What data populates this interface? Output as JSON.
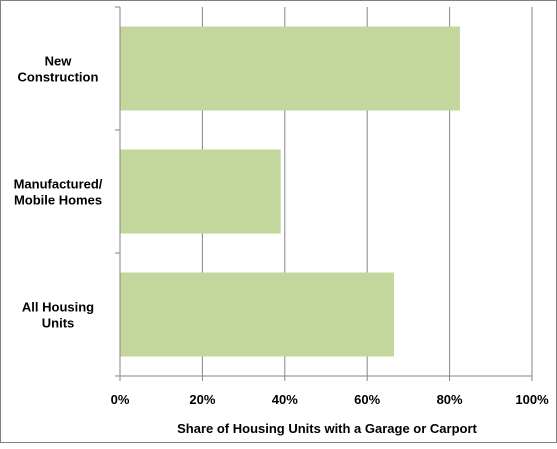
{
  "chart_data": {
    "type": "bar",
    "orientation": "horizontal",
    "categories": [
      [
        "New",
        "Construction"
      ],
      [
        "Manufactured/",
        "Mobile Homes"
      ],
      [
        "All Housing",
        "Units"
      ]
    ],
    "values": [
      82.5,
      39,
      66.5
    ],
    "value_unit": "percent",
    "xlabel": "Share of Housing Units with a Garage or Carport",
    "ylabel": "",
    "title": "",
    "xlim": [
      0,
      100
    ],
    "xticks": [
      0,
      20,
      40,
      60,
      80,
      100
    ],
    "xtick_labels": [
      "0%",
      "20%",
      "40%",
      "60%",
      "80%",
      "100%"
    ],
    "grid": "vertical",
    "legend": "none",
    "colors": {
      "bar": "#c3d69b",
      "grid": "#868686",
      "axis": "#868686",
      "text": "#000000"
    }
  }
}
